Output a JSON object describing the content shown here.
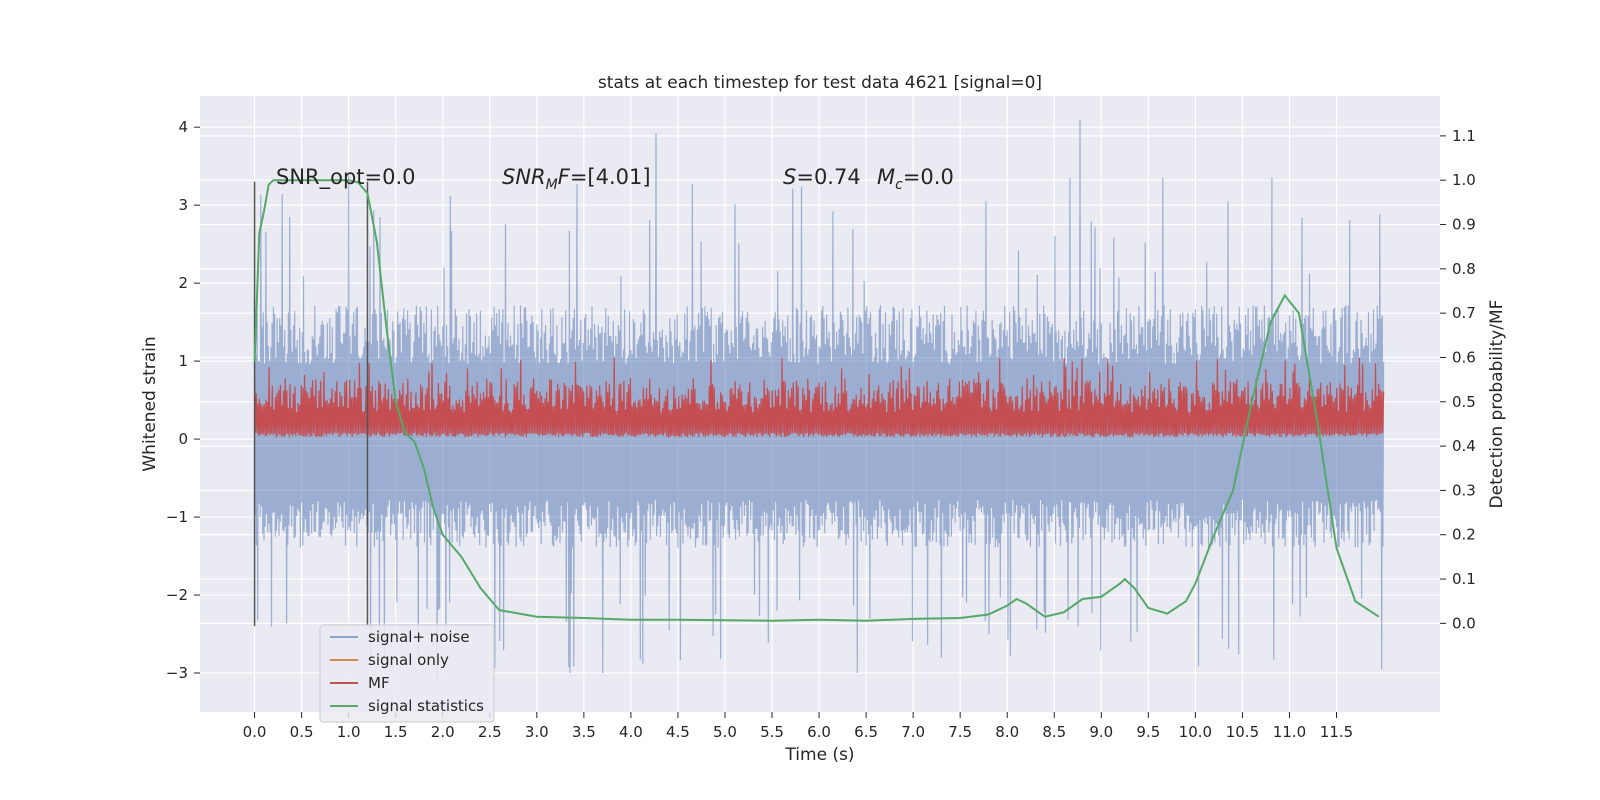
{
  "chart_data": {
    "type": "line",
    "title": "stats at each timestep for test data 4621 [signal=0]",
    "xlabel": "Time (s)",
    "ylabel": "Whitened strain",
    "y2label": "Detection probability/MF",
    "xlim": [
      -0.58,
      12.6
    ],
    "ylim": [
      -3.5,
      4.4
    ],
    "y2lim": [
      -0.2,
      1.19
    ],
    "x_ticks": [
      "0.0",
      "0.5",
      "1.0",
      "1.5",
      "2.0",
      "2.5",
      "3.0",
      "3.5",
      "4.0",
      "4.5",
      "5.0",
      "5.5",
      "6.0",
      "6.5",
      "7.0",
      "7.5",
      "8.0",
      "8.5",
      "9.0",
      "9.5",
      "10.0",
      "10.5",
      "11.0",
      "11.5"
    ],
    "y_ticks": [
      "−3",
      "−2",
      "−1",
      "0",
      "1",
      "2",
      "3",
      "4"
    ],
    "y2_ticks": [
      "0.0",
      "0.1",
      "0.2",
      "0.3",
      "0.4",
      "0.5",
      "0.6",
      "0.7",
      "0.8",
      "0.9",
      "1.0",
      "1.1"
    ],
    "grid": true,
    "legend_position": "lower-left",
    "annotations": {
      "snr_opt": "SNR_opt=0.0",
      "snr_mf_prefix": "SNR",
      "snr_mf_sub": "M",
      "snr_mf_suffix": "F=[4.01]",
      "s_label": "S",
      "s_value": "=0.74",
      "mc_label": "M",
      "mc_sub": "c",
      "mc_value": "=0.0"
    },
    "vertical_markers": [
      {
        "x": 0.0,
        "y_range": [
          -2.4,
          3.3
        ]
      },
      {
        "x": 1.2,
        "y_range": [
          -2.4,
          3.3
        ]
      }
    ],
    "series": [
      {
        "name": "signal+ noise",
        "color": "#4c72b0",
        "axis": "left",
        "x_range": [
          0.0,
          12.0
        ],
        "band": {
          "upper_typical": 1.6,
          "upper_peak": 4.1,
          "lower_typical": -1.3,
          "lower_peak": -3.0
        },
        "peaks": [
          {
            "x": 4.27,
            "y": 3.92
          },
          {
            "x": 8.78,
            "y": 4.1
          },
          {
            "x": 1.0,
            "y": 3.4
          },
          {
            "x": 9.65,
            "y": 3.35
          },
          {
            "x": 0.38,
            "y": 2.85
          },
          {
            "x": 1.93,
            "y": -3.1
          },
          {
            "x": 3.35,
            "y": -3.0
          },
          {
            "x": 3.7,
            "y": -3.0
          },
          {
            "x": 6.4,
            "y": -3.0
          }
        ]
      },
      {
        "name": "signal only",
        "color": "#dd8452",
        "axis": "left",
        "values": []
      },
      {
        "name": "MF",
        "color": "#c44e52",
        "axis": "right",
        "x_range": [
          0.0,
          12.0
        ],
        "band": {
          "lower": 0.42,
          "upper_typical": 0.56,
          "upper_peak": 0.6
        }
      },
      {
        "name": "signal statistics",
        "color": "#55a868",
        "axis": "right",
        "x": [
          0.0,
          0.05,
          0.1,
          0.15,
          0.2,
          0.3,
          0.5,
          0.8,
          1.0,
          1.1,
          1.2,
          1.3,
          1.4,
          1.5,
          1.6,
          1.7,
          1.8,
          1.9,
          2.0,
          2.2,
          2.4,
          2.6,
          3.0,
          3.5,
          4.0,
          4.5,
          5.0,
          5.5,
          6.0,
          6.5,
          7.0,
          7.5,
          7.8,
          8.0,
          8.1,
          8.2,
          8.4,
          8.6,
          8.8,
          9.0,
          9.2,
          9.25,
          9.35,
          9.5,
          9.7,
          9.9,
          10.0,
          10.2,
          10.4,
          10.6,
          10.8,
          10.95,
          11.1,
          11.3,
          11.5,
          11.7,
          11.95
        ],
        "values": [
          0.59,
          0.88,
          0.93,
          0.99,
          1.0,
          1.0,
          1.0,
          1.0,
          1.0,
          0.995,
          0.97,
          0.86,
          0.67,
          0.5,
          0.43,
          0.41,
          0.35,
          0.26,
          0.2,
          0.15,
          0.08,
          0.03,
          0.015,
          0.012,
          0.008,
          0.008,
          0.007,
          0.006,
          0.008,
          0.006,
          0.01,
          0.012,
          0.02,
          0.04,
          0.055,
          0.045,
          0.015,
          0.025,
          0.055,
          0.06,
          0.09,
          0.1,
          0.08,
          0.035,
          0.022,
          0.05,
          0.09,
          0.2,
          0.3,
          0.5,
          0.68,
          0.74,
          0.7,
          0.45,
          0.17,
          0.05,
          0.015
        ]
      }
    ]
  }
}
